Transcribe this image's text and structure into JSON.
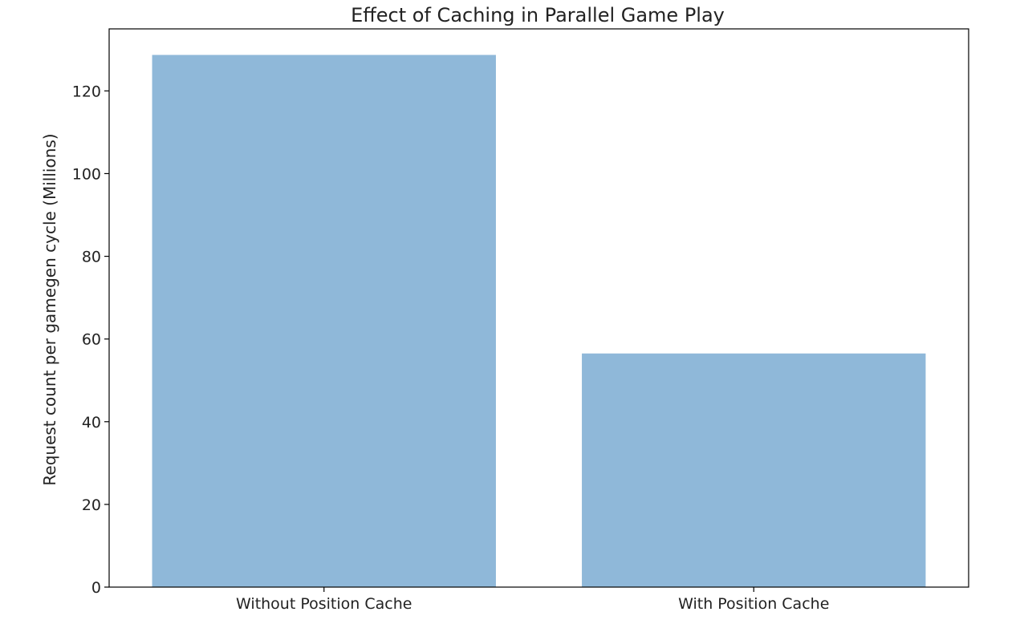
{
  "chart_data": {
    "type": "bar",
    "title": "Effect of Caching in Parallel Game Play",
    "xlabel": "",
    "ylabel": "Request count per gamegen cycle (Millions)",
    "categories": [
      "Without Position Cache",
      "With Position Cache"
    ],
    "values": [
      128.7,
      56.5
    ],
    "ylim": [
      0,
      135
    ],
    "yticks": [
      0,
      20,
      40,
      60,
      80,
      100,
      120
    ],
    "bar_color": "#8fb8d9",
    "grid": false,
    "legend": "none"
  }
}
